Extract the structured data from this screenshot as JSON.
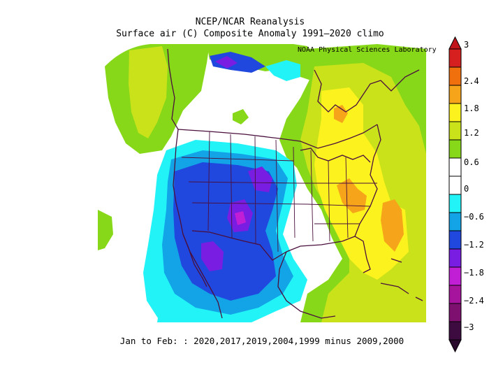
{
  "title_line1": "NCEP/NCAR Reanalysis",
  "title_line2": "Surface air (C) Composite Anomaly 1991–2020 climo",
  "credit": "NOAA Physical Sciences Laboratory",
  "footer": "Jan to Feb: : 2020,2017,2019,2004,1999 minus 2009,2000",
  "colorbar": {
    "labels": [
      "3",
      "2.4",
      "1.8",
      "1.2",
      "0.6",
      "0",
      "−0.6",
      "−1.2",
      "−1.8",
      "−2.4",
      "−3"
    ],
    "colors_top_to_bottom": [
      "#d6201f",
      "#f0700e",
      "#f6a51a",
      "#fcf21d",
      "#c9e219",
      "#88d81a",
      "#ffffff",
      "#ffffff",
      "#22f3f7",
      "#13a3e7",
      "#2048de",
      "#7a1de2",
      "#c11fd6",
      "#a6139d",
      "#7e1070",
      "#3d0b3f"
    ]
  },
  "colors": {
    "warm_green": "#88d81a",
    "yellow_green": "#c9e219",
    "yellow": "#fcf21d",
    "orange": "#f6a51a",
    "cyan": "#22f3f7",
    "light_blue": "#13a3e7",
    "blue": "#2048de",
    "purple": "#7a1de2",
    "magenta": "#c11fd6",
    "boundary": "#4a0f3c"
  }
}
